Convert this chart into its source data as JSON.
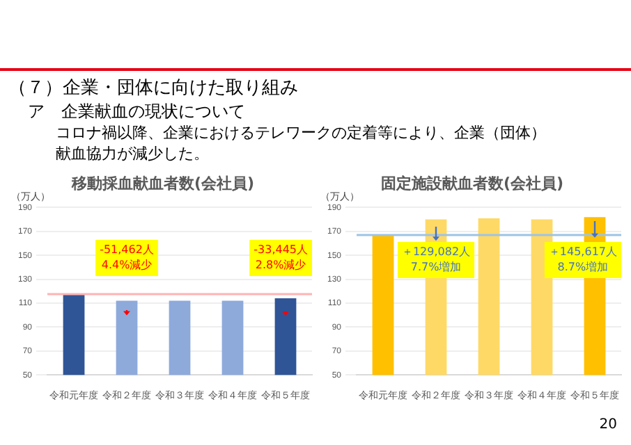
{
  "chart_data": [
    {
      "type": "other",
      "title": "（７）企業・団体に向けた取り組み",
      "subtitle": "ア　企業献血の現状について",
      "annotations": [
        "コロナ禍以降、企業におけるテレワークの定着等により、企業（団体）献血協力が減少した。",
        "20"
      ]
    },
    {
      "type": "bar",
      "title": "移動採血献血者数(会社員)",
      "ylabel": "（万人）",
      "categories": [
        "令和元年度",
        "令和２年度",
        "令和３年度",
        "令和４年度",
        "令和５年度"
      ],
      "series": [
        {
          "colors": [
            "#2f5597",
            "#8eaadb",
            "#8eaadb",
            "#8eaadb",
            "#2f5597"
          ],
          "values": [
            117,
            112,
            112,
            112,
            114
          ]
        }
      ],
      "ylim": [
        50,
        190
      ],
      "yticks": [
        50,
        70,
        90,
        110,
        130,
        150,
        170,
        190
      ],
      "grid": "y",
      "legend": false,
      "ref_lines": [
        {
          "axis": "y",
          "value": 117.5,
          "color": "#ffb3b3"
        }
      ],
      "annotations": [
        "-51,462人\n4.4%減少",
        "-33,445人\n2.8%減少"
      ]
    },
    {
      "type": "bar",
      "title": "固定施設献血者数(会社員)",
      "ylabel": "（万人）",
      "categories": [
        "令和元年度",
        "令和２年度",
        "令和３年度",
        "令和４年度",
        "令和５年度"
      ],
      "series": [
        {
          "colors": [
            "#ffc000",
            "#ffd966",
            "#ffd966",
            "#ffd966",
            "#ffc000"
          ],
          "values": [
            167,
            180,
            181,
            180,
            182
          ]
        }
      ],
      "ylim": [
        50,
        190
      ],
      "yticks": [
        50,
        70,
        90,
        110,
        130,
        150,
        170,
        190
      ],
      "grid": "y",
      "legend": false,
      "ref_lines": [
        {
          "axis": "y",
          "value": 167,
          "color": "#9dc3e6"
        }
      ],
      "annotations": [
        "＋129,082人\n7.7%増加",
        "＋145,617人\n8.7%増加"
      ]
    }
  ]
}
